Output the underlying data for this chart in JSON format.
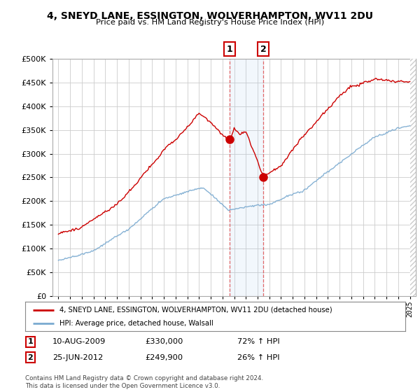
{
  "title": "4, SNEYD LANE, ESSINGTON, WOLVERHAMPTON, WV11 2DU",
  "subtitle": "Price paid vs. HM Land Registry's House Price Index (HPI)",
  "legend_line1": "4, SNEYD LANE, ESSINGTON, WOLVERHAMPTON, WV11 2DU (detached house)",
  "legend_line2": "HPI: Average price, detached house, Walsall",
  "annotation1_date": "10-AUG-2009",
  "annotation1_price": "£330,000",
  "annotation1_hpi": "72% ↑ HPI",
  "annotation2_date": "25-JUN-2012",
  "annotation2_price": "£249,900",
  "annotation2_hpi": "26% ↑ HPI",
  "footnote": "Contains HM Land Registry data © Crown copyright and database right 2024.\nThis data is licensed under the Open Government Licence v3.0.",
  "ylim": [
    0,
    500000
  ],
  "yticks": [
    0,
    50000,
    100000,
    150000,
    200000,
    250000,
    300000,
    350000,
    400000,
    450000,
    500000
  ],
  "red_color": "#cc0000",
  "blue_color": "#7aaad0",
  "bg_color": "#ffffff",
  "grid_color": "#cccccc",
  "sale1_x": 2009.6,
  "sale1_y": 330000,
  "sale2_x": 2012.5,
  "sale2_y": 249900,
  "xmin": 1994.5,
  "xmax": 2025.5
}
